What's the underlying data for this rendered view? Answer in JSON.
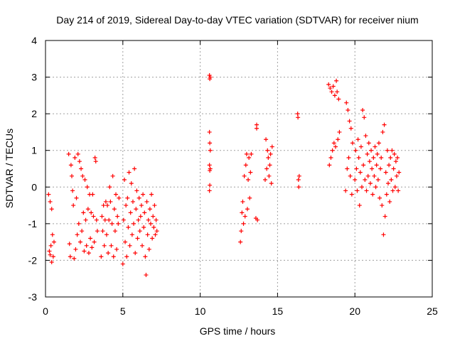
{
  "chart_data": {
    "type": "scatter",
    "title": "Day 214 of 2019, Sidereal Day-to-day VTEC variation (SDTVAR) for receiver nium",
    "xlabel": "GPS time / hours",
    "ylabel": "SDTVAR / TECUs",
    "xlim": [
      0,
      25
    ],
    "ylim": [
      -3,
      4
    ],
    "xticks": [
      "0",
      "5",
      "10",
      "15",
      "20",
      "25"
    ],
    "yticks": [
      "-3",
      "-2",
      "-1",
      "0",
      "1",
      "2",
      "3",
      "4"
    ],
    "grid": true,
    "marker": "plus",
    "series": [
      {
        "name": "SDTVAR",
        "color": "#ff0000",
        "points": [
          [
            0.2,
            -0.2
          ],
          [
            0.25,
            -1.75
          ],
          [
            0.3,
            -1.85
          ],
          [
            0.3,
            -0.4
          ],
          [
            0.35,
            -1.6
          ],
          [
            0.4,
            -2.05
          ],
          [
            0.4,
            -0.6
          ],
          [
            0.45,
            -1.3
          ],
          [
            0.5,
            -1.9
          ],
          [
            0.55,
            -1.5
          ],
          [
            1.5,
            0.9
          ],
          [
            1.55,
            -1.55
          ],
          [
            1.6,
            -1.9
          ],
          [
            1.65,
            0.6
          ],
          [
            1.7,
            0.3
          ],
          [
            1.75,
            -0.1
          ],
          [
            1.8,
            -0.5
          ],
          [
            1.85,
            -1.95
          ],
          [
            1.9,
            0.8
          ],
          [
            1.95,
            -1.7
          ],
          [
            2.0,
            -0.3
          ],
          [
            2.05,
            -1.3
          ],
          [
            2.1,
            0.9
          ],
          [
            2.15,
            -1.0
          ],
          [
            2.2,
            0.7
          ],
          [
            2.25,
            -1.5
          ],
          [
            2.3,
            0.5
          ],
          [
            2.35,
            -1.2
          ],
          [
            2.4,
            0.3
          ],
          [
            2.45,
            -0.7
          ],
          [
            2.5,
            -1.75
          ],
          [
            2.55,
            0.2
          ],
          [
            2.6,
            -0.9
          ],
          [
            2.65,
            -1.6
          ],
          [
            2.7,
            0.0
          ],
          [
            2.75,
            -0.6
          ],
          [
            2.8,
            -1.8
          ],
          [
            2.85,
            -0.2
          ],
          [
            2.9,
            -1.4
          ],
          [
            2.95,
            -0.7
          ],
          [
            3.0,
            -1.65
          ],
          [
            3.05,
            -0.2
          ],
          [
            3.1,
            -0.8
          ],
          [
            3.15,
            -1.5
          ],
          [
            3.2,
            0.8
          ],
          [
            3.25,
            0.7
          ],
          [
            3.3,
            -0.9
          ],
          [
            3.35,
            -1.2
          ],
          [
            3.6,
            -1.9
          ],
          [
            3.65,
            -0.8
          ],
          [
            3.7,
            -1.2
          ],
          [
            3.75,
            -0.5
          ],
          [
            3.8,
            -1.6
          ],
          [
            3.85,
            -0.9
          ],
          [
            3.9,
            -0.4
          ],
          [
            3.95,
            -1.3
          ],
          [
            4.0,
            -0.5
          ],
          [
            4.05,
            -1.8
          ],
          [
            4.1,
            -0.9
          ],
          [
            4.15,
            0.0
          ],
          [
            4.2,
            -0.4
          ],
          [
            4.25,
            -1.6
          ],
          [
            4.3,
            -1.0
          ],
          [
            4.35,
            0.3
          ],
          [
            4.4,
            -1.9
          ],
          [
            4.45,
            -0.6
          ],
          [
            4.5,
            -1.2
          ],
          [
            4.55,
            -0.2
          ],
          [
            4.6,
            -1.7
          ],
          [
            4.65,
            -0.8
          ],
          [
            4.7,
            -1.0
          ],
          [
            4.75,
            -0.3
          ],
          [
            5.0,
            -2.1
          ],
          [
            5.05,
            -0.9
          ],
          [
            5.1,
            0.2
          ],
          [
            5.15,
            -1.5
          ],
          [
            5.2,
            -0.5
          ],
          [
            5.25,
            -1.9
          ],
          [
            5.3,
            -0.3
          ],
          [
            5.35,
            -1.1
          ],
          [
            5.4,
            0.4
          ],
          [
            5.45,
            -1.6
          ],
          [
            5.5,
            -0.7
          ],
          [
            5.55,
            0.1
          ],
          [
            5.6,
            -1.3
          ],
          [
            5.65,
            -0.4
          ],
          [
            5.7,
            -1.0
          ],
          [
            5.75,
            0.5
          ],
          [
            5.8,
            -1.8
          ],
          [
            5.85,
            -0.6
          ],
          [
            5.9,
            -0.1
          ],
          [
            5.95,
            -1.4
          ],
          [
            6.0,
            -0.9
          ],
          [
            6.05,
            -0.3
          ],
          [
            6.1,
            -1.2
          ],
          [
            6.15,
            -0.8
          ],
          [
            6.2,
            -0.5
          ],
          [
            6.25,
            -1.6
          ],
          [
            6.3,
            -0.2
          ],
          [
            6.35,
            -1.1
          ],
          [
            6.4,
            -0.7
          ],
          [
            6.45,
            -1.9
          ],
          [
            6.5,
            -2.4
          ],
          [
            6.55,
            -0.4
          ],
          [
            6.6,
            -1.3
          ],
          [
            6.65,
            -0.9
          ],
          [
            6.7,
            -1.7
          ],
          [
            6.75,
            -0.6
          ],
          [
            6.8,
            -1.0
          ],
          [
            6.85,
            -0.2
          ],
          [
            6.9,
            -1.4
          ],
          [
            6.95,
            -0.8
          ],
          [
            7.0,
            -1.1
          ],
          [
            7.05,
            -0.5
          ],
          [
            7.1,
            -1.3
          ],
          [
            7.15,
            -0.9
          ],
          [
            7.2,
            -1.2
          ],
          [
            10.6,
            3.05
          ],
          [
            10.62,
            2.95
          ],
          [
            10.65,
            3.0
          ],
          [
            10.6,
            1.5
          ],
          [
            10.62,
            1.2
          ],
          [
            10.65,
            1.0
          ],
          [
            10.6,
            0.6
          ],
          [
            10.62,
            0.45
          ],
          [
            10.65,
            0.5
          ],
          [
            10.6,
            -0.1
          ],
          [
            10.62,
            0.05
          ],
          [
            12.6,
            -1.5
          ],
          [
            12.65,
            -1.2
          ],
          [
            12.7,
            -0.7
          ],
          [
            12.75,
            -0.4
          ],
          [
            12.8,
            -1.0
          ],
          [
            12.85,
            0.3
          ],
          [
            12.9,
            -0.8
          ],
          [
            12.95,
            0.6
          ],
          [
            13.0,
            0.9
          ],
          [
            13.05,
            -0.6
          ],
          [
            13.1,
            0.2
          ],
          [
            13.15,
            0.8
          ],
          [
            13.2,
            -0.3
          ],
          [
            13.25,
            0.4
          ],
          [
            13.3,
            0.9
          ],
          [
            13.6,
            -0.85
          ],
          [
            13.65,
            1.6
          ],
          [
            13.7,
            -0.9
          ],
          [
            13.65,
            1.7
          ],
          [
            14.2,
            0.2
          ],
          [
            14.25,
            1.3
          ],
          [
            14.3,
            0.5
          ],
          [
            14.35,
            1.0
          ],
          [
            14.4,
            0.8
          ],
          [
            14.45,
            0.3
          ],
          [
            14.5,
            0.6
          ],
          [
            14.55,
            0.9
          ],
          [
            14.6,
            0.1
          ],
          [
            14.65,
            1.1
          ],
          [
            16.3,
            2.0
          ],
          [
            16.32,
            1.9
          ],
          [
            16.35,
            0.2
          ],
          [
            16.37,
            0.0
          ],
          [
            16.4,
            0.3
          ],
          [
            18.3,
            2.8
          ],
          [
            18.35,
            0.6
          ],
          [
            18.4,
            2.7
          ],
          [
            18.45,
            0.8
          ],
          [
            18.5,
            2.6
          ],
          [
            18.55,
            1.0
          ],
          [
            18.6,
            2.75
          ],
          [
            18.65,
            1.2
          ],
          [
            18.7,
            2.5
          ],
          [
            18.75,
            1.1
          ],
          [
            18.8,
            2.9
          ],
          [
            18.85,
            2.6
          ],
          [
            18.9,
            1.3
          ],
          [
            18.95,
            2.4
          ],
          [
            19.0,
            1.5
          ],
          [
            19.4,
            -0.1
          ],
          [
            19.45,
            2.3
          ],
          [
            19.5,
            0.5
          ],
          [
            19.55,
            2.1
          ],
          [
            19.6,
            0.8
          ],
          [
            19.65,
            1.8
          ],
          [
            19.7,
            0.3
          ],
          [
            19.75,
            1.6
          ],
          [
            19.8,
            -0.2
          ],
          [
            19.85,
            1.2
          ],
          [
            20.0,
            0.2
          ],
          [
            20.05,
            1.0
          ],
          [
            20.1,
            0.5
          ],
          [
            20.15,
            -0.1
          ],
          [
            20.2,
            1.3
          ],
          [
            20.25,
            0.8
          ],
          [
            20.3,
            -0.5
          ],
          [
            20.35,
            0.4
          ],
          [
            20.4,
            1.1
          ],
          [
            20.45,
            0.0
          ],
          [
            20.5,
            2.1
          ],
          [
            20.55,
            0.6
          ],
          [
            20.6,
            1.9
          ],
          [
            20.65,
            0.2
          ],
          [
            20.7,
            1.4
          ],
          [
            20.75,
            -0.1
          ],
          [
            20.8,
            0.9
          ],
          [
            20.85,
            0.3
          ],
          [
            20.9,
            1.2
          ],
          [
            20.95,
            0.7
          ],
          [
            21.0,
            0.1
          ],
          [
            21.05,
            1.0
          ],
          [
            21.1,
            0.5
          ],
          [
            21.15,
            -0.2
          ],
          [
            21.2,
            0.8
          ],
          [
            21.25,
            0.3
          ],
          [
            21.3,
            1.1
          ],
          [
            21.35,
            0.0
          ],
          [
            21.4,
            0.6
          ],
          [
            21.45,
            0.9
          ],
          [
            21.5,
            0.2
          ],
          [
            21.55,
            1.2
          ],
          [
            21.6,
            -0.3
          ],
          [
            21.65,
            0.5
          ],
          [
            21.7,
            0.8
          ],
          [
            21.75,
            -0.5
          ],
          [
            21.8,
            1.5
          ],
          [
            21.85,
            -1.3
          ],
          [
            21.9,
            1.7
          ],
          [
            21.95,
            -0.8
          ],
          [
            22.0,
            0.4
          ],
          [
            22.05,
            -0.2
          ],
          [
            22.1,
            1.0
          ],
          [
            22.15,
            0.1
          ],
          [
            22.2,
            0.6
          ],
          [
            22.25,
            -0.4
          ],
          [
            22.3,
            0.8
          ],
          [
            22.35,
            0.2
          ],
          [
            22.4,
            1.0
          ],
          [
            22.45,
            -0.1
          ],
          [
            22.5,
            0.5
          ],
          [
            22.55,
            0.9
          ],
          [
            22.6,
            0.0
          ],
          [
            22.65,
            0.7
          ],
          [
            22.7,
            0.3
          ],
          [
            22.75,
            0.8
          ],
          [
            22.8,
            -0.1
          ],
          [
            22.85,
            0.4
          ]
        ]
      }
    ]
  }
}
